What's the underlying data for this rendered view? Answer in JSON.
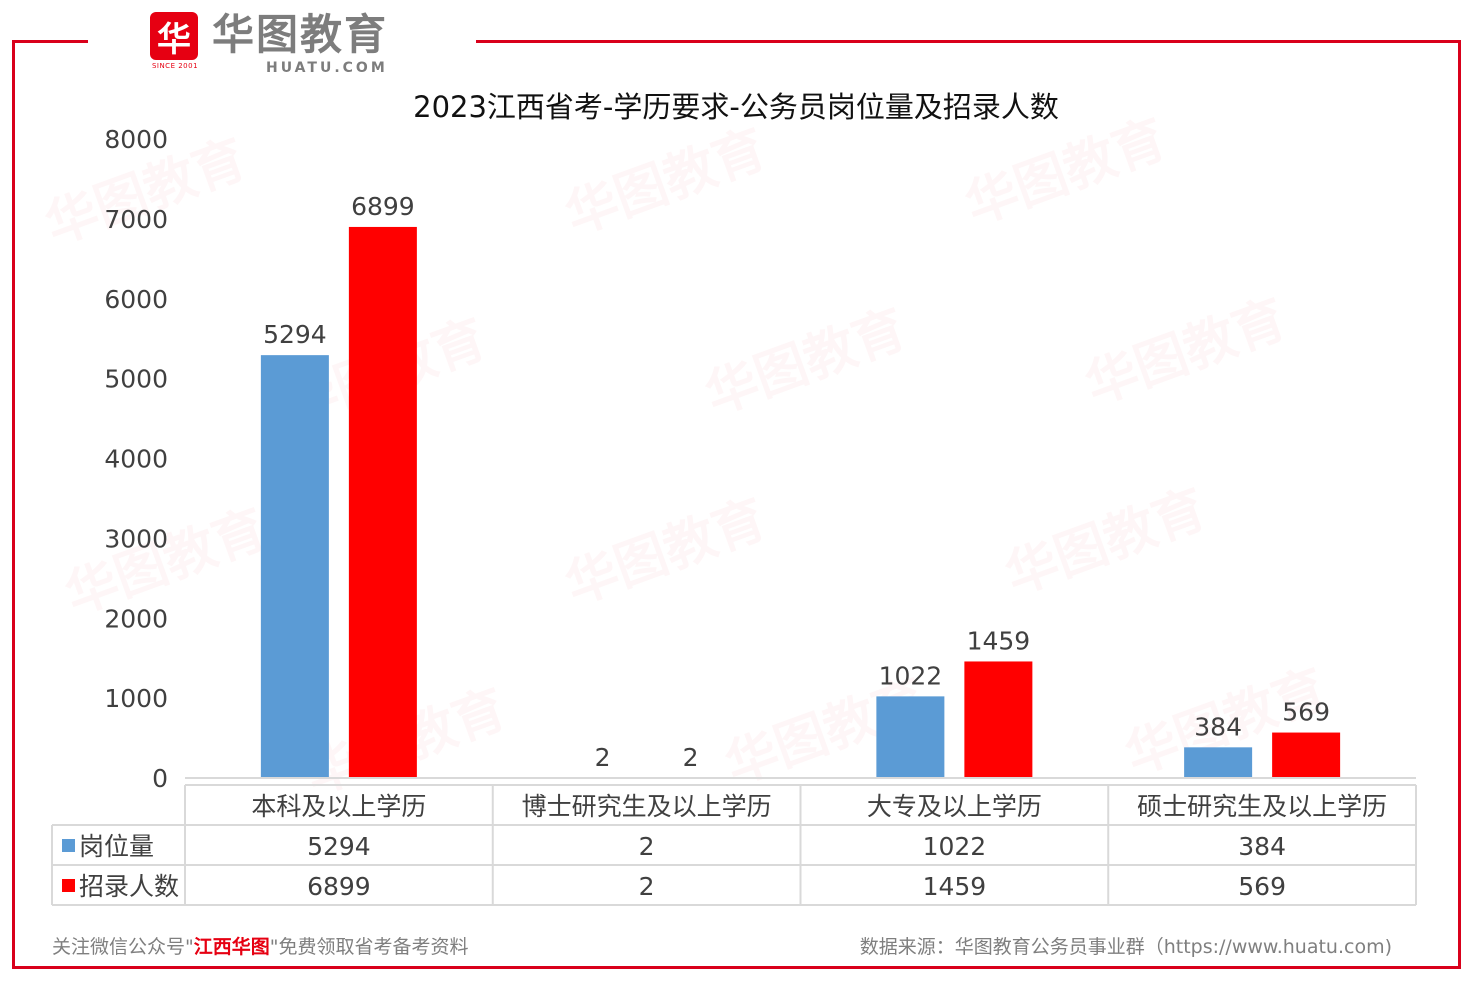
{
  "brand": {
    "mark": "华",
    "since": "SINCE 2001",
    "name_cn": "华图教育",
    "name_en": "HUATU.COM"
  },
  "footer": {
    "left_prefix": "关注微信公众号\"",
    "left_highlight": "江西华图",
    "left_suffix": "\"免费领取省考备考资料",
    "source": "数据来源：华图教育公务员事业群（https://www.huatu.com)"
  },
  "colors": {
    "frame": "#d9001b",
    "series_blue": "#5b9bd5",
    "series_red": "#ff0000"
  },
  "chart_data": {
    "type": "bar",
    "title": "2023江西省考-学历要求-公务员岗位量及招录人数",
    "categories": [
      "本科及以上学历",
      "博士研究生及以上学历",
      "大专及以上学历",
      "硕士研究生及以上学历"
    ],
    "series": [
      {
        "name": "岗位量",
        "values": [
          5294,
          2,
          1022,
          384
        ],
        "color": "#5b9bd5"
      },
      {
        "name": "招录人数",
        "values": [
          6899,
          2,
          1459,
          569
        ],
        "color": "#ff0000"
      }
    ],
    "ylim": [
      0,
      8000
    ],
    "yticks": [
      0,
      1000,
      2000,
      3000,
      4000,
      5000,
      6000,
      7000,
      8000
    ],
    "grid": false,
    "data_table": true
  }
}
